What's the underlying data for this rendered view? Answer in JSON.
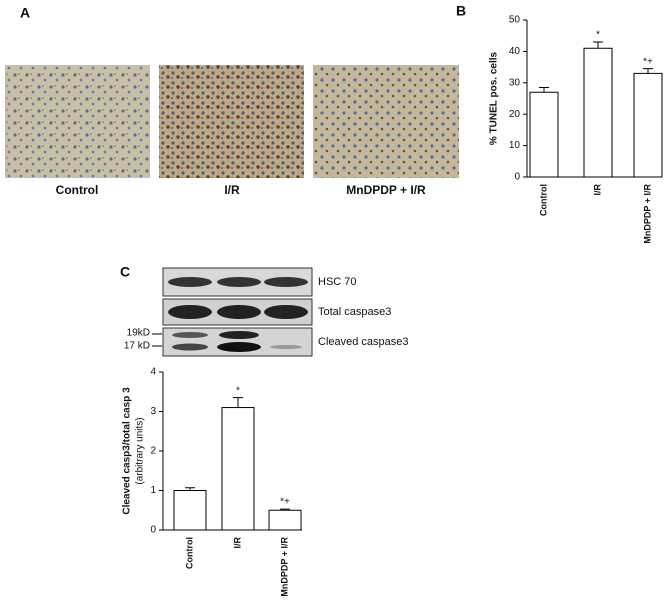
{
  "panel_a": {
    "label": "A",
    "captions": [
      "Control",
      "I/R",
      "MnDPDP + I/R"
    ]
  },
  "blot": {
    "rows": [
      "HSC 70",
      "Total caspase3",
      "Cleaved caspase3"
    ],
    "markers": [
      "19kD",
      "17 kD"
    ]
  },
  "chart_data": [
    {
      "type": "bar",
      "panel_label": "B",
      "y_label": "% TUNEL pos. cells",
      "categories": [
        "Control",
        "I/R",
        "MnDPDP + I/R"
      ],
      "values": [
        27,
        41,
        33
      ],
      "errors": [
        1.5,
        2,
        1.5
      ],
      "annotations": [
        null,
        "*",
        "*+"
      ],
      "color": "#ffffff",
      "ylim": [
        0,
        50
      ],
      "yticks": [
        0,
        10,
        20,
        30,
        40,
        50
      ]
    },
    {
      "type": "bar",
      "panel_label": "C",
      "y_label": "Cleaved casp3/total casp 3",
      "y_label_sub": "(arbitrary units)",
      "categories": [
        "Control",
        "I/R",
        "MnDPDP + I/R"
      ],
      "values": [
        1.0,
        3.1,
        0.5
      ],
      "errors": [
        0.07,
        0.25,
        0.03
      ],
      "annotations": [
        null,
        "*",
        "*+"
      ],
      "color": "#ffffff",
      "ylim": [
        0,
        4
      ],
      "yticks": [
        0,
        1,
        2,
        3,
        4
      ]
    }
  ]
}
